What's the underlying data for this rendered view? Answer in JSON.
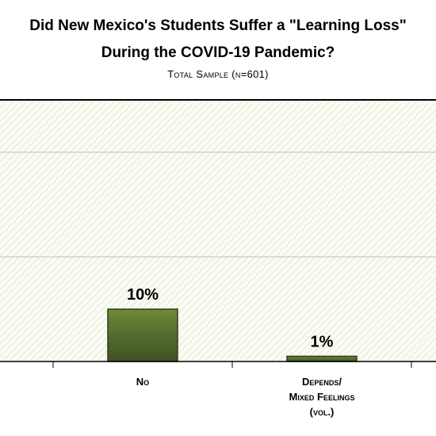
{
  "chart_data": {
    "type": "bar",
    "title": "Did New Mexico's Students Suffer a \"Learning Loss\" During the COVID-19 Pandemic?",
    "title_lines": [
      "Did New Mexico's Students Suffer a \"Learning Loss\"",
      "During the COVID-19 Pandemic?"
    ],
    "subtitle": "Total Sample (n=601)",
    "categories": [
      "No",
      "Depends/ Mixed Feelings (vol.)"
    ],
    "category_lines": [
      [
        "No"
      ],
      [
        "Depends/",
        "Mixed Feelings",
        "(vol.)"
      ]
    ],
    "values": [
      10,
      1
    ],
    "data_labels": [
      "10%",
      "1%"
    ],
    "ylim": [
      0,
      100
    ],
    "grid": true,
    "bar_color": "#556b2f",
    "xlabel": "",
    "ylabel": ""
  }
}
